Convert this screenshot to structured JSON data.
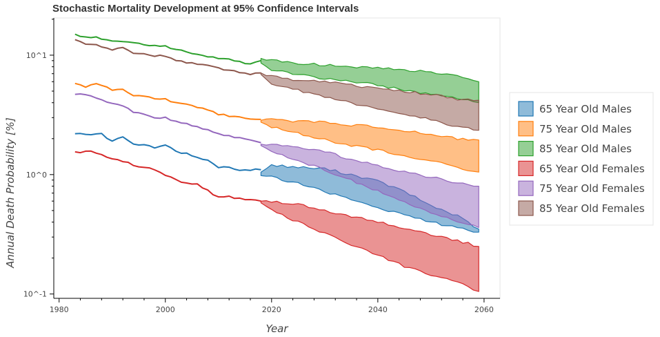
{
  "chart_data": {
    "type": "area",
    "title": "Stochastic Mortality Development at 95% Confidence Intervals",
    "xlabel": "Year",
    "ylabel": "Annual Death Probability [%]",
    "y_scale": "log",
    "xlim": [
      1979,
      2063
    ],
    "ylim": [
      0.092,
      20.5
    ],
    "x_ticks": [
      1980,
      2000,
      2020,
      2040,
      2060
    ],
    "y_ticks": [
      {
        "value": 0.1,
        "label": "10^-1"
      },
      {
        "value": 1,
        "label": "10^0"
      },
      {
        "value": 10,
        "label": "10^1"
      }
    ],
    "grid": false,
    "legend_position": "right",
    "historical_years": [
      1983,
      2018
    ],
    "projection_years": [
      2018,
      2059
    ],
    "series": [
      {
        "name": "65 Year Old Males",
        "color": "#1f77b4",
        "history": [
          [
            1983,
            2.2
          ],
          [
            1986,
            2.15
          ],
          [
            1988,
            2.2
          ],
          [
            1990,
            1.9
          ],
          [
            1992,
            2.05
          ],
          [
            1994,
            1.8
          ],
          [
            1996,
            1.8
          ],
          [
            1998,
            1.7
          ],
          [
            2000,
            1.8
          ],
          [
            2002,
            1.55
          ],
          [
            2004,
            1.5
          ],
          [
            2006,
            1.4
          ],
          [
            2008,
            1.3
          ],
          [
            2010,
            1.15
          ],
          [
            2012,
            1.15
          ],
          [
            2014,
            1.1
          ],
          [
            2016,
            1.1
          ],
          [
            2018,
            1.1
          ]
        ],
        "upper": [
          [
            2018,
            1.05
          ],
          [
            2020,
            1.2
          ],
          [
            2025,
            1.15
          ],
          [
            2030,
            1.12
          ],
          [
            2035,
            1.0
          ],
          [
            2040,
            0.88
          ],
          [
            2045,
            0.72
          ],
          [
            2050,
            0.55
          ],
          [
            2055,
            0.45
          ],
          [
            2059,
            0.35
          ]
        ],
        "lower": [
          [
            2018,
            0.98
          ],
          [
            2020,
            0.95
          ],
          [
            2025,
            0.85
          ],
          [
            2030,
            0.72
          ],
          [
            2035,
            0.62
          ],
          [
            2040,
            0.53
          ],
          [
            2045,
            0.46
          ],
          [
            2050,
            0.4
          ],
          [
            2055,
            0.36
          ],
          [
            2059,
            0.33
          ]
        ]
      },
      {
        "name": "75 Year Old Males",
        "color": "#ff7f0e",
        "history": [
          [
            1983,
            5.8
          ],
          [
            1985,
            5.4
          ],
          [
            1987,
            5.8
          ],
          [
            1990,
            5.1
          ],
          [
            1992,
            5.1
          ],
          [
            1994,
            4.5
          ],
          [
            1996,
            4.6
          ],
          [
            1998,
            4.3
          ],
          [
            2000,
            4.3
          ],
          [
            2002,
            4.0
          ],
          [
            2004,
            3.9
          ],
          [
            2006,
            3.6
          ],
          [
            2008,
            3.5
          ],
          [
            2010,
            3.2
          ],
          [
            2012,
            3.1
          ],
          [
            2014,
            3.05
          ],
          [
            2016,
            2.9
          ],
          [
            2018,
            2.9
          ]
        ],
        "upper": [
          [
            2018,
            2.85
          ],
          [
            2020,
            2.9
          ],
          [
            2025,
            2.8
          ],
          [
            2030,
            2.75
          ],
          [
            2035,
            2.6
          ],
          [
            2040,
            2.5
          ],
          [
            2045,
            2.3
          ],
          [
            2050,
            2.2
          ],
          [
            2055,
            2.0
          ],
          [
            2059,
            1.95
          ]
        ],
        "lower": [
          [
            2018,
            2.75
          ],
          [
            2020,
            2.5
          ],
          [
            2025,
            2.2
          ],
          [
            2030,
            1.95
          ],
          [
            2035,
            1.75
          ],
          [
            2040,
            1.6
          ],
          [
            2045,
            1.45
          ],
          [
            2050,
            1.3
          ],
          [
            2055,
            1.15
          ],
          [
            2059,
            1.05
          ]
        ]
      },
      {
        "name": "85 Year Old Males",
        "color": "#2ca02c",
        "history": [
          [
            1983,
            15.0
          ],
          [
            1985,
            14.0
          ],
          [
            1987,
            14.2
          ],
          [
            1990,
            13.0
          ],
          [
            1992,
            13.2
          ],
          [
            1994,
            12.6
          ],
          [
            1996,
            12.4
          ],
          [
            1998,
            12.0
          ],
          [
            2000,
            11.9
          ],
          [
            2002,
            11.2
          ],
          [
            2004,
            10.5
          ],
          [
            2006,
            10.1
          ],
          [
            2008,
            9.8
          ],
          [
            2010,
            9.4
          ],
          [
            2012,
            9.2
          ],
          [
            2014,
            8.8
          ],
          [
            2016,
            8.5
          ],
          [
            2018,
            9.0
          ]
        ],
        "upper": [
          [
            2018,
            9.4
          ],
          [
            2020,
            9.0
          ],
          [
            2025,
            8.6
          ],
          [
            2030,
            8.3
          ],
          [
            2035,
            8.0
          ],
          [
            2040,
            7.8
          ],
          [
            2045,
            7.5
          ],
          [
            2050,
            7.2
          ],
          [
            2055,
            6.6
          ],
          [
            2059,
            6.0
          ]
        ],
        "lower": [
          [
            2018,
            8.6
          ],
          [
            2020,
            7.5
          ],
          [
            2025,
            6.9
          ],
          [
            2030,
            6.4
          ],
          [
            2035,
            6.0
          ],
          [
            2040,
            5.6
          ],
          [
            2045,
            5.1
          ],
          [
            2050,
            4.7
          ],
          [
            2055,
            4.3
          ],
          [
            2059,
            4.0
          ]
        ]
      },
      {
        "name": "65 Year Old Females",
        "color": "#d62728",
        "history": [
          [
            1983,
            1.55
          ],
          [
            1986,
            1.55
          ],
          [
            1988,
            1.45
          ],
          [
            1990,
            1.35
          ],
          [
            1992,
            1.3
          ],
          [
            1994,
            1.2
          ],
          [
            1996,
            1.15
          ],
          [
            1998,
            1.1
          ],
          [
            2000,
            1.0
          ],
          [
            2002,
            0.9
          ],
          [
            2004,
            0.85
          ],
          [
            2006,
            0.83
          ],
          [
            2008,
            0.73
          ],
          [
            2010,
            0.65
          ],
          [
            2012,
            0.65
          ],
          [
            2014,
            0.63
          ],
          [
            2016,
            0.62
          ],
          [
            2018,
            0.6
          ]
        ],
        "upper": [
          [
            2018,
            0.6
          ],
          [
            2020,
            0.6
          ],
          [
            2025,
            0.56
          ],
          [
            2030,
            0.5
          ],
          [
            2035,
            0.45
          ],
          [
            2040,
            0.4
          ],
          [
            2045,
            0.36
          ],
          [
            2050,
            0.31
          ],
          [
            2055,
            0.28
          ],
          [
            2059,
            0.25
          ]
        ],
        "lower": [
          [
            2018,
            0.58
          ],
          [
            2020,
            0.5
          ],
          [
            2025,
            0.4
          ],
          [
            2030,
            0.32
          ],
          [
            2035,
            0.26
          ],
          [
            2040,
            0.21
          ],
          [
            2045,
            0.17
          ],
          [
            2050,
            0.145
          ],
          [
            2055,
            0.125
          ],
          [
            2059,
            0.105
          ]
        ]
      },
      {
        "name": "75 Year Old Females",
        "color": "#9467bd",
        "history": [
          [
            1983,
            4.7
          ],
          [
            1985,
            4.7
          ],
          [
            1987,
            4.3
          ],
          [
            1990,
            4.0
          ],
          [
            1992,
            3.8
          ],
          [
            1994,
            3.3
          ],
          [
            1996,
            3.2
          ],
          [
            1998,
            3.0
          ],
          [
            2000,
            3.0
          ],
          [
            2002,
            2.8
          ],
          [
            2004,
            2.65
          ],
          [
            2006,
            2.5
          ],
          [
            2008,
            2.4
          ],
          [
            2010,
            2.2
          ],
          [
            2012,
            2.1
          ],
          [
            2014,
            2.05
          ],
          [
            2016,
            1.95
          ],
          [
            2018,
            1.85
          ]
        ],
        "upper": [
          [
            2018,
            1.8
          ],
          [
            2020,
            1.82
          ],
          [
            2025,
            1.72
          ],
          [
            2030,
            1.55
          ],
          [
            2035,
            1.35
          ],
          [
            2040,
            1.2
          ],
          [
            2045,
            1.05
          ],
          [
            2050,
            0.95
          ],
          [
            2055,
            0.85
          ],
          [
            2059,
            0.8
          ]
        ],
        "lower": [
          [
            2018,
            1.75
          ],
          [
            2020,
            1.55
          ],
          [
            2025,
            1.3
          ],
          [
            2030,
            1.1
          ],
          [
            2035,
            0.9
          ],
          [
            2040,
            0.73
          ],
          [
            2045,
            0.58
          ],
          [
            2050,
            0.48
          ],
          [
            2055,
            0.41
          ],
          [
            2059,
            0.36
          ]
        ]
      },
      {
        "name": "85 Year Old Females",
        "color": "#8c564b",
        "history": [
          [
            1983,
            13.5
          ],
          [
            1985,
            12.3
          ],
          [
            1987,
            12.3
          ],
          [
            1990,
            11.2
          ],
          [
            1992,
            11.5
          ],
          [
            1994,
            10.5
          ],
          [
            1996,
            10.2
          ],
          [
            1998,
            9.8
          ],
          [
            2000,
            9.9
          ],
          [
            2002,
            8.9
          ],
          [
            2004,
            8.7
          ],
          [
            2006,
            8.4
          ],
          [
            2008,
            8.1
          ],
          [
            2010,
            7.8
          ],
          [
            2012,
            7.5
          ],
          [
            2014,
            7.2
          ],
          [
            2016,
            7.0
          ],
          [
            2018,
            7.1
          ]
        ],
        "upper": [
          [
            2018,
            7.1
          ],
          [
            2020,
            6.6
          ],
          [
            2025,
            6.2
          ],
          [
            2030,
            6.0
          ],
          [
            2035,
            5.6
          ],
          [
            2040,
            5.3
          ],
          [
            2045,
            5.0
          ],
          [
            2050,
            4.7
          ],
          [
            2055,
            4.3
          ],
          [
            2059,
            4.2
          ]
        ],
        "lower": [
          [
            2018,
            6.9
          ],
          [
            2020,
            5.8
          ],
          [
            2025,
            5.1
          ],
          [
            2030,
            4.5
          ],
          [
            2035,
            4.0
          ],
          [
            2040,
            3.5
          ],
          [
            2045,
            3.2
          ],
          [
            2050,
            2.9
          ],
          [
            2055,
            2.5
          ],
          [
            2059,
            2.35
          ]
        ]
      }
    ]
  }
}
